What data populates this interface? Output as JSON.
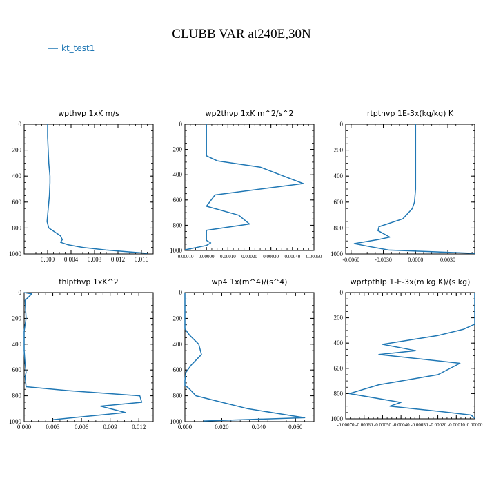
{
  "title": "CLUBB VAR at240E,30N",
  "legend": {
    "label": "kt_test1",
    "color": "#1f77b4"
  },
  "chart_data": [
    {
      "type": "line",
      "title": "wpthvp  1xK m/s",
      "xlim": [
        -0.004,
        0.018
      ],
      "ylim": [
        1000,
        0
      ],
      "xticks": [
        "0.000",
        "0.004",
        "0.008",
        "0.012",
        "0.016"
      ],
      "yticks": [
        "0",
        "200",
        "400",
        "600",
        "800",
        "1000"
      ],
      "series": [
        {
          "x": [
            0.0,
            0.0,
            0.0002,
            0.0004,
            0.0004,
            0.0003,
            0.0001,
            -0.0001,
            0.0002,
            0.0022,
            0.0025,
            0.0022,
            0.0035,
            0.006,
            0.01,
            0.017
          ],
          "y": [
            0,
            100,
            300,
            400,
            450,
            550,
            650,
            750,
            800,
            860,
            890,
            910,
            930,
            950,
            970,
            995
          ]
        }
      ]
    },
    {
      "type": "line",
      "title": "wp2thvp  1xK m^2/s^2",
      "xlim": [
        -0.0001,
        0.0005
      ],
      "ylim": [
        1000,
        0
      ],
      "xticks": [
        "-0.00010",
        "0.00000",
        "0.00010",
        "0.00020",
        "0.00030",
        "0.00040",
        "0.00050"
      ],
      "yticks": [
        "0",
        "200",
        "400",
        "600",
        "800",
        "1000"
      ],
      "series": [
        {
          "x": [
            0.0,
            0.0,
            0.0,
            5e-05,
            0.00025,
            0.00045,
            4e-05,
            0.0,
            0.00015,
            0.0002,
            0.0,
            0.0,
            2e-05,
            0.0,
            -0.0001
          ],
          "y": [
            0,
            150,
            250,
            290,
            340,
            470,
            560,
            650,
            720,
            790,
            840,
            920,
            940,
            960,
            995
          ]
        }
      ]
    },
    {
      "type": "line",
      "title": "rtpthvp  1E-3x(kg/kg) K",
      "xlim": [
        -0.0065,
        0.0055
      ],
      "ylim": [
        1000,
        0
      ],
      "xticks": [
        "-0.0060",
        "-0.0030",
        "0.0000",
        "0.0030"
      ],
      "yticks": [
        "0",
        "200",
        "400",
        "600",
        "800",
        "1000"
      ],
      "series": [
        {
          "x": [
            0.0,
            0.0,
            0.0,
            -0.0001,
            -0.0003,
            -0.0012,
            -0.0034,
            -0.0035,
            -0.0024,
            -0.0035,
            -0.0057,
            -0.0045,
            -0.0025,
            0.0055
          ],
          "y": [
            0,
            300,
            500,
            600,
            650,
            730,
            790,
            820,
            870,
            890,
            920,
            940,
            970,
            995
          ]
        }
      ]
    },
    {
      "type": "line",
      "title": "thlpthvp  1xK^2",
      "xlim": [
        0,
        0.0135
      ],
      "ylim": [
        1000,
        0
      ],
      "xticks": [
        "0.000",
        "0.003",
        "0.006",
        "0.009",
        "0.012"
      ],
      "yticks": [
        "0",
        "200",
        "400",
        "600",
        "800",
        "1000"
      ],
      "series": [
        {
          "x": [
            0.0,
            0.0008,
            0.0001,
            0.0002,
            0.0,
            0.0,
            0.0001,
            0.0002,
            0.0001,
            0.0002,
            0.0046,
            0.0121,
            0.0123,
            0.008,
            0.0106,
            0.003
          ],
          "y": [
            0,
            10,
            60,
            200,
            300,
            450,
            550,
            620,
            650,
            730,
            760,
            800,
            850,
            880,
            930,
            985
          ]
        }
      ]
    },
    {
      "type": "line",
      "title": "wp4  1x(m^4)/(s^4)",
      "xlim": [
        0,
        0.07
      ],
      "ylim": [
        1000,
        0
      ],
      "xticks": [
        "0.000",
        "0.020",
        "0.040",
        "0.060"
      ],
      "yticks": [
        "0",
        "200",
        "400",
        "600",
        "800",
        "1000"
      ],
      "series": [
        {
          "x": [
            0.0,
            0.0,
            0.0,
            0.0025,
            0.0075,
            0.009,
            0.0035,
            0.0005,
            0.0,
            0.0,
            0.002,
            0.006,
            0.02,
            0.034,
            0.056,
            0.065,
            0.01
          ],
          "y": [
            0,
            150,
            280,
            330,
            400,
            480,
            560,
            620,
            680,
            720,
            740,
            800,
            850,
            900,
            950,
            970,
            995
          ]
        }
      ]
    },
    {
      "type": "line",
      "title": "wprtpthlp  1-E-3x(m kg K)/(s kg)",
      "xlim": [
        -0.0007,
        0.0
      ],
      "ylim": [
        1000,
        0
      ],
      "xticks": [
        "-0.00070",
        "-0.00060",
        "-0.00050",
        "-0.00040",
        "-0.00030",
        "-0.00020",
        "-0.00010",
        "0.00000"
      ],
      "yticks": [
        "0",
        "200",
        "400",
        "600",
        "800",
        "1000"
      ],
      "series": [
        {
          "x": [
            0.0,
            0.0,
            -6e-05,
            -0.0002,
            -0.0005,
            -0.00032,
            -0.00052,
            -8e-05,
            -0.0002,
            -0.00052,
            -0.00068,
            -0.0004,
            -0.00046,
            -0.0002,
            -2e-05,
            0.0
          ],
          "y": [
            0,
            250,
            290,
            340,
            410,
            460,
            490,
            560,
            650,
            730,
            800,
            870,
            900,
            940,
            970,
            995
          ]
        }
      ]
    }
  ]
}
